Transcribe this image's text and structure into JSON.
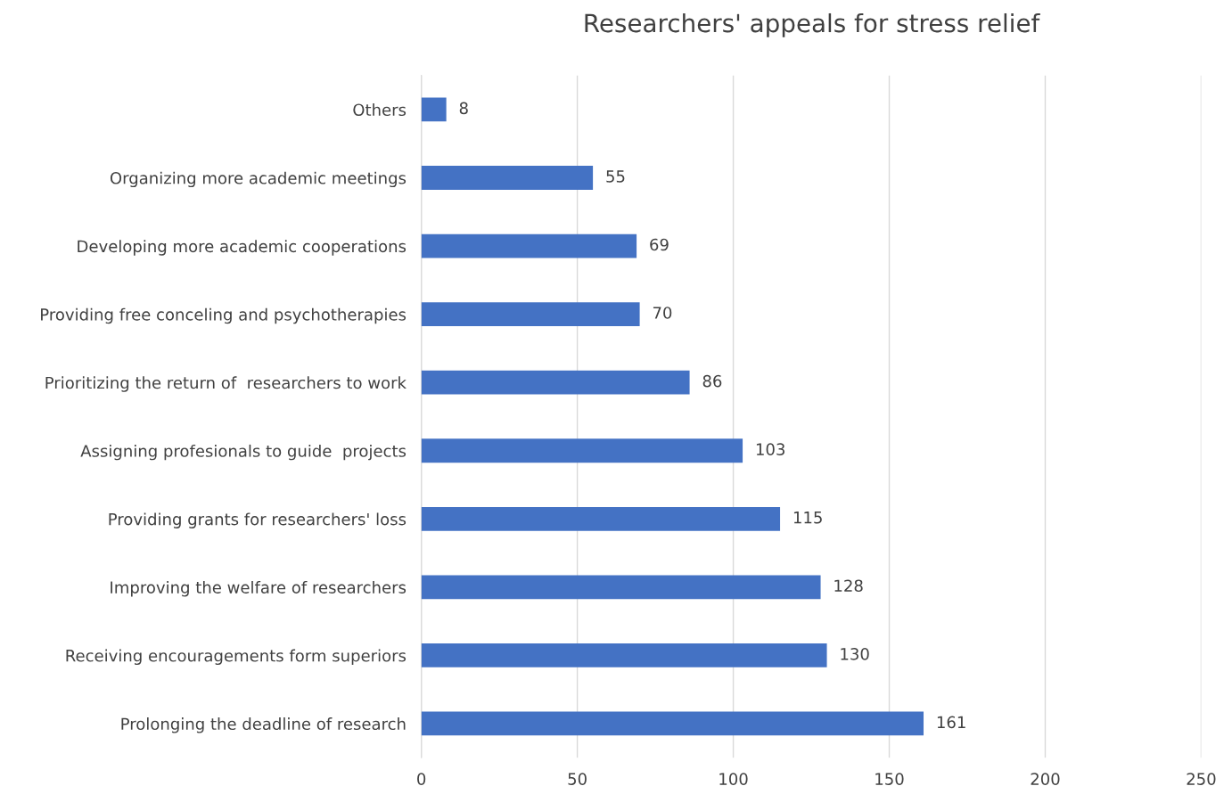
{
  "chart_data": {
    "type": "bar",
    "orientation": "horizontal",
    "title": "Researchers' appeals for stress relief",
    "categories": [
      "Others",
      "Organizing more academic meetings",
      "Developing more academic cooperations",
      "Providing free conceling and psychotherapies",
      "Prioritizing the return of  researchers to work",
      "Assigning profesionals to guide  projects",
      "Providing grants for researchers' loss",
      "Improving the welfare of researchers",
      "Receiving encouragements form superiors",
      "Prolonging the deadline of research"
    ],
    "values": [
      8,
      55,
      69,
      70,
      86,
      103,
      115,
      128,
      130,
      161
    ],
    "color": "#4472c4",
    "xlim": [
      0,
      250
    ],
    "xticks": [
      0,
      50,
      100,
      150,
      200,
      250
    ],
    "grid": "x",
    "data_labels": true,
    "legend": false
  }
}
